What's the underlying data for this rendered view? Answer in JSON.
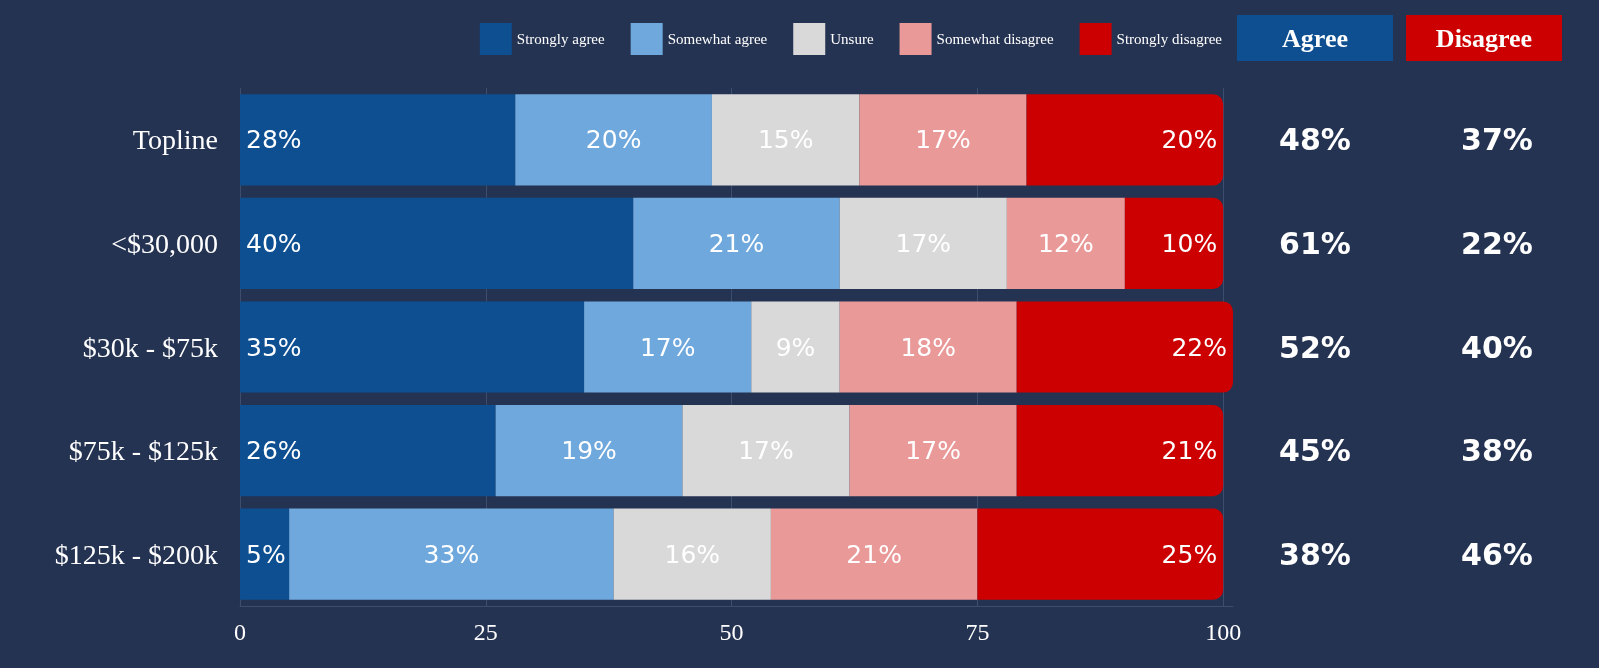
{
  "chart_data": {
    "type": "bar",
    "orientation": "horizontal",
    "stacked": true,
    "categories": [
      "Topline",
      "<$30,000",
      "$30k - $75k",
      "$75k - $125k",
      "$125k - $200k"
    ],
    "series": [
      {
        "name": "Strongly agree",
        "color": "#0d4f91",
        "values": [
          28,
          40,
          35,
          26,
          5
        ],
        "value_labels": [
          "28%",
          "40%",
          "35%",
          "26%",
          "5%"
        ]
      },
      {
        "name": "Somewhat agree",
        "color": "#6fa8dc",
        "values": [
          20,
          21,
          17,
          19,
          33
        ],
        "value_labels": [
          "20%",
          "21%",
          "17%",
          "19%",
          "33%"
        ]
      },
      {
        "name": "Unsure",
        "color": "#d9d9d9",
        "values": [
          15,
          17,
          9,
          17,
          16
        ],
        "value_labels": [
          "15%",
          "17%",
          "9%",
          "17%",
          "16%"
        ]
      },
      {
        "name": "Somewhat disagree",
        "color": "#ea9999",
        "values": [
          17,
          12,
          18,
          17,
          21
        ],
        "value_labels": [
          "17%",
          "12%",
          "18%",
          "17%",
          "21%"
        ]
      },
      {
        "name": "Strongly disagree",
        "color": "#cc0000",
        "values": [
          20,
          10,
          22,
          21,
          25
        ],
        "value_labels": [
          "20%",
          "10%",
          "22%",
          "21%",
          "25%"
        ]
      }
    ],
    "xlim": [
      0,
      101
    ],
    "xticks": [
      0,
      25,
      50,
      75,
      100
    ],
    "grid": "x",
    "legend": "top",
    "annotations": [
      "Agree",
      "Disagree",
      "48%",
      "37%",
      "61%",
      "22%",
      "52%",
      "40%",
      "45%",
      "38%",
      "38%",
      "46%"
    ]
  }
}
